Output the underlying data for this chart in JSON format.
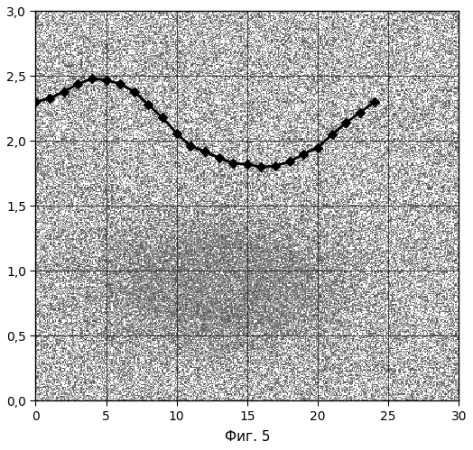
{
  "x_data": [
    0,
    1,
    2,
    3,
    4,
    5,
    6,
    7,
    8,
    9,
    10,
    11,
    12,
    13,
    14,
    15,
    16,
    17,
    18,
    19,
    20,
    21,
    22,
    23,
    24
  ],
  "y_data": [
    2.3,
    2.33,
    2.38,
    2.44,
    2.48,
    2.47,
    2.44,
    2.38,
    2.28,
    2.18,
    2.06,
    1.96,
    1.92,
    1.87,
    1.83,
    1.82,
    1.8,
    1.81,
    1.84,
    1.9,
    1.95,
    2.05,
    2.14,
    2.22,
    2.3
  ],
  "xlim": [
    0,
    30
  ],
  "ylim": [
    0.0,
    3.0
  ],
  "xticks": [
    0,
    5,
    10,
    15,
    20,
    25,
    30
  ],
  "yticks": [
    0.0,
    0.5,
    1.0,
    1.5,
    2.0,
    2.5,
    3.0
  ],
  "xlabel": "Фиг. 5",
  "line_color": "#000000",
  "marker": "D",
  "marker_size": 5,
  "line_width": 2.0,
  "fig_width": 5.24,
  "fig_height": 4.99,
  "dpi": 100
}
